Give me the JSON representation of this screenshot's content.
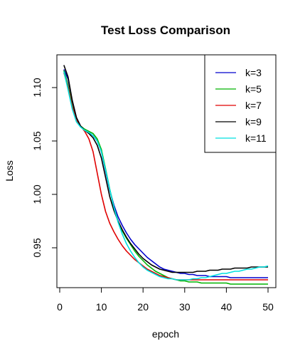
{
  "chart_data": {
    "type": "line",
    "title": "Test Loss Comparison",
    "xlabel": "epoch",
    "ylabel": "Loss",
    "xlim": [
      0,
      50
    ],
    "ylim": [
      0.915,
      1.125
    ],
    "x_ticks": [
      0,
      10,
      20,
      30,
      40,
      50
    ],
    "y_ticks": [
      0.95,
      1.0,
      1.05,
      1.1
    ],
    "y_tick_labels": [
      "0.95",
      "1.00",
      "1.05",
      "1.10"
    ],
    "grid": false,
    "legend_position": "top-right",
    "series": [
      {
        "name": "k=3",
        "color": "#0000CD",
        "x": [
          1,
          2,
          3,
          4,
          5,
          6,
          7,
          8,
          9,
          10,
          11,
          12,
          13,
          14,
          15,
          16,
          17,
          18,
          19,
          20,
          21,
          22,
          23,
          24,
          25,
          26,
          27,
          28,
          29,
          30,
          31,
          32,
          33,
          34,
          35,
          36,
          37,
          38,
          39,
          40,
          41,
          42,
          43,
          44,
          45,
          46,
          47,
          48,
          49,
          50
        ],
        "y": [
          1.117,
          1.108,
          1.088,
          1.072,
          1.064,
          1.06,
          1.058,
          1.055,
          1.05,
          1.04,
          1.022,
          1.004,
          0.99,
          0.979,
          0.971,
          0.964,
          0.958,
          0.953,
          0.949,
          0.945,
          0.941,
          0.938,
          0.935,
          0.932,
          0.93,
          0.929,
          0.928,
          0.927,
          0.926,
          0.926,
          0.925,
          0.925,
          0.924,
          0.924,
          0.924,
          0.923,
          0.923,
          0.923,
          0.923,
          0.923,
          0.922,
          0.922,
          0.922,
          0.922,
          0.922,
          0.922,
          0.922,
          0.922,
          0.922,
          0.922
        ]
      },
      {
        "name": "k=5",
        "color": "#00B400",
        "x": [
          1,
          2,
          3,
          4,
          5,
          6,
          7,
          8,
          9,
          10,
          11,
          12,
          13,
          14,
          15,
          16,
          17,
          18,
          19,
          20,
          21,
          22,
          23,
          24,
          25,
          26,
          27,
          28,
          29,
          30,
          31,
          32,
          33,
          34,
          35,
          36,
          37,
          38,
          39,
          40,
          41,
          42,
          43,
          44,
          45,
          46,
          47,
          48,
          49,
          50
        ],
        "y": [
          1.116,
          1.102,
          1.083,
          1.07,
          1.064,
          1.061,
          1.059,
          1.057,
          1.052,
          1.042,
          1.024,
          1.005,
          0.988,
          0.975,
          0.966,
          0.959,
          0.953,
          0.947,
          0.942,
          0.938,
          0.934,
          0.931,
          0.928,
          0.926,
          0.924,
          0.922,
          0.921,
          0.92,
          0.919,
          0.919,
          0.918,
          0.918,
          0.918,
          0.917,
          0.917,
          0.917,
          0.917,
          0.917,
          0.917,
          0.917,
          0.916,
          0.916,
          0.916,
          0.916,
          0.916,
          0.916,
          0.916,
          0.916,
          0.916,
          0.916
        ]
      },
      {
        "name": "k=7",
        "color": "#E00000",
        "x": [
          1,
          2,
          3,
          4,
          5,
          6,
          7,
          8,
          9,
          10,
          11,
          12,
          13,
          14,
          15,
          16,
          17,
          18,
          19,
          20,
          21,
          22,
          23,
          24,
          25,
          26,
          27,
          28,
          29,
          30,
          31,
          32,
          33,
          34,
          35,
          36,
          37,
          38,
          39,
          40,
          41,
          42,
          43,
          44,
          45,
          46,
          47,
          48,
          49,
          50
        ],
        "y": [
          1.114,
          1.1,
          1.082,
          1.07,
          1.064,
          1.059,
          1.052,
          1.04,
          1.02,
          1.0,
          0.984,
          0.973,
          0.965,
          0.958,
          0.952,
          0.947,
          0.943,
          0.939,
          0.936,
          0.933,
          0.93,
          0.928,
          0.926,
          0.924,
          0.923,
          0.922,
          0.921,
          0.92,
          0.92,
          0.92,
          0.92,
          0.92,
          0.92,
          0.92,
          0.92,
          0.92,
          0.92,
          0.92,
          0.92,
          0.92,
          0.92,
          0.92,
          0.92,
          0.92,
          0.92,
          0.92,
          0.92,
          0.92,
          0.92,
          0.92
        ]
      },
      {
        "name": "k=9",
        "color": "#000000",
        "x": [
          1,
          2,
          3,
          4,
          5,
          6,
          7,
          8,
          9,
          10,
          11,
          12,
          13,
          14,
          15,
          16,
          17,
          18,
          19,
          20,
          21,
          22,
          23,
          24,
          25,
          26,
          27,
          28,
          29,
          30,
          31,
          32,
          33,
          34,
          35,
          36,
          37,
          38,
          39,
          40,
          41,
          42,
          43,
          44,
          45,
          46,
          47,
          48,
          49,
          50
        ],
        "y": [
          1.121,
          1.11,
          1.088,
          1.072,
          1.064,
          1.06,
          1.057,
          1.053,
          1.046,
          1.034,
          1.016,
          0.998,
          0.985,
          0.975,
          0.967,
          0.96,
          0.954,
          0.949,
          0.944,
          0.94,
          0.937,
          0.934,
          0.932,
          0.93,
          0.929,
          0.928,
          0.927,
          0.927,
          0.927,
          0.927,
          0.927,
          0.927,
          0.928,
          0.928,
          0.928,
          0.929,
          0.929,
          0.929,
          0.93,
          0.93,
          0.93,
          0.931,
          0.931,
          0.931,
          0.931,
          0.932,
          0.932,
          0.932,
          0.932,
          0.932
        ]
      },
      {
        "name": "k=11",
        "color": "#00E0E0",
        "x": [
          1,
          2,
          3,
          4,
          5,
          6,
          7,
          8,
          9,
          10,
          11,
          12,
          13,
          14,
          15,
          16,
          17,
          18,
          19,
          20,
          21,
          22,
          23,
          24,
          25,
          26,
          27,
          28,
          29,
          30,
          31,
          32,
          33,
          34,
          35,
          36,
          37,
          38,
          39,
          40,
          41,
          42,
          43,
          44,
          45,
          46,
          47,
          48,
          49,
          50
        ],
        "y": [
          1.115,
          1.098,
          1.08,
          1.068,
          1.063,
          1.06,
          1.058,
          1.055,
          1.05,
          1.04,
          1.023,
          1.005,
          0.988,
          0.974,
          0.963,
          0.954,
          0.947,
          0.941,
          0.936,
          0.932,
          0.929,
          0.927,
          0.925,
          0.923,
          0.922,
          0.921,
          0.921,
          0.92,
          0.92,
          0.92,
          0.92,
          0.921,
          0.921,
          0.922,
          0.922,
          0.923,
          0.924,
          0.925,
          0.926,
          0.926,
          0.927,
          0.928,
          0.928,
          0.929,
          0.93,
          0.93,
          0.931,
          0.932,
          0.932,
          0.933
        ]
      }
    ]
  }
}
